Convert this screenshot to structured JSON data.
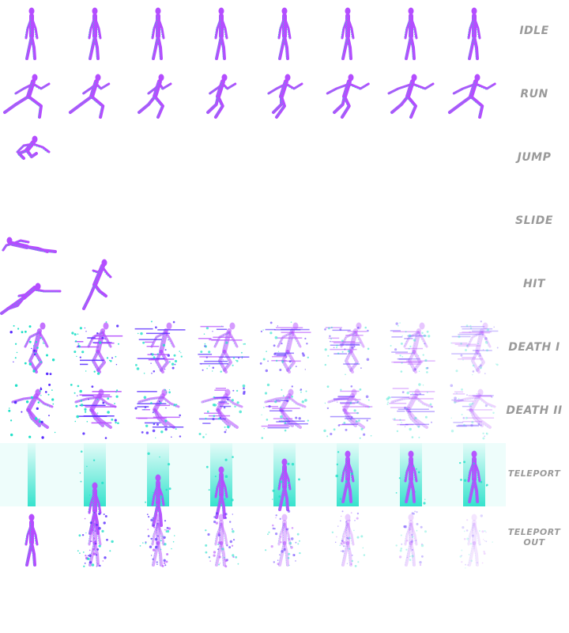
{
  "colors": {
    "body": "#b44dff",
    "glow": "#21e0c8",
    "dark": "#5a2dff",
    "label": "#9a9a9a"
  },
  "rows": [
    {
      "key": "idle",
      "label": "IDLE",
      "frames": 8,
      "pose": "idle",
      "fx": "none"
    },
    {
      "key": "run",
      "label": "RUN",
      "frames": 8,
      "pose": "run",
      "fx": "none"
    },
    {
      "key": "jump",
      "label": "JUMP",
      "frames": 1,
      "pose": "jump",
      "fx": "none"
    },
    {
      "key": "slide",
      "label": "SLIDE",
      "frames": 1,
      "pose": "slide",
      "fx": "none"
    },
    {
      "key": "hit",
      "label": "HIT",
      "frames": 2,
      "pose": "hit",
      "fx": "none"
    },
    {
      "key": "death1",
      "label": "DEATH I",
      "frames": 8,
      "pose": "death",
      "fx": "glitch"
    },
    {
      "key": "death2",
      "label": "DEATH II",
      "frames": 8,
      "pose": "death2",
      "fx": "glitch"
    },
    {
      "key": "teleport",
      "label": "TELEPORT",
      "frames": 8,
      "pose": "idle",
      "fx": "beam"
    },
    {
      "key": "teleport_out",
      "label": "TELEPORT OUT",
      "frames": 8,
      "pose": "idle",
      "fx": "dissolve"
    }
  ]
}
